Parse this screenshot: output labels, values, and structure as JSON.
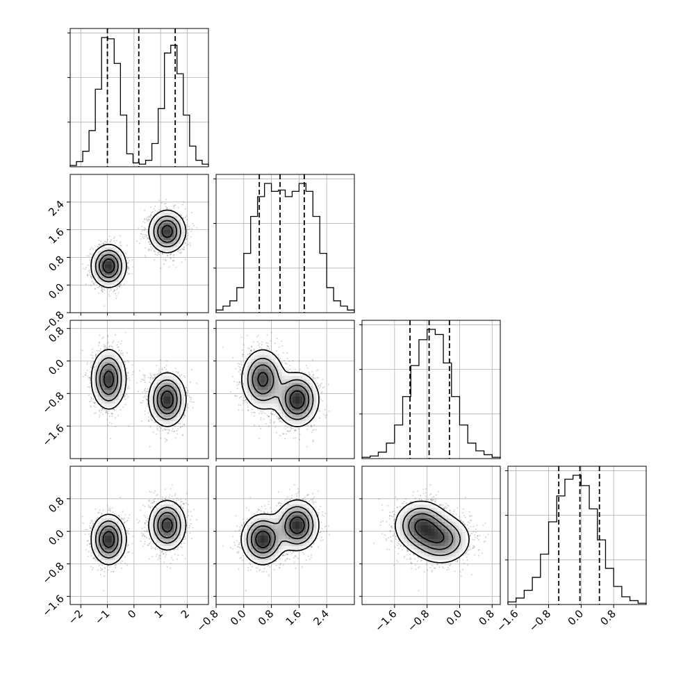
{
  "chart_data": {
    "type": "corner",
    "title": "",
    "n_params": 4,
    "param_labels": [
      "",
      "",
      "",
      ""
    ],
    "ranges": [
      [
        -2.4,
        2.8
      ],
      [
        -0.8,
        3.2
      ],
      [
        -2.4,
        1.0
      ],
      [
        -1.8,
        1.6
      ]
    ],
    "x_ticks": [
      [
        -2,
        -1,
        0,
        1,
        2
      ],
      [
        -0.8,
        0.0,
        0.8,
        1.6,
        2.4
      ],
      [
        -1.6,
        -0.8,
        0.0,
        0.8
      ],
      [
        -1.6,
        -0.8,
        0.0,
        0.8
      ]
    ],
    "x_tick_labels": [
      [
        "−2",
        "−1",
        "0",
        "1",
        "2"
      ],
      [
        "−0.8",
        "0.0",
        "0.8",
        "1.6",
        "2.4"
      ],
      [
        "−1.6",
        "−0.8",
        "0.0",
        "0.8"
      ],
      [
        "−1.6",
        "−0.8",
        "0.0",
        "0.8"
      ]
    ],
    "y_ticks": [
      [],
      [
        -0.8,
        0.0,
        0.8,
        1.6,
        2.4
      ],
      [
        -1.6,
        -0.8,
        0.0,
        0.8
      ],
      [
        -1.6,
        -0.8,
        0.0,
        0.8
      ]
    ],
    "y_tick_labels": [
      [],
      [
        "−0.8",
        "0.0",
        "0.8",
        "1.6",
        "2.4"
      ],
      [
        "−1.6",
        "−0.8",
        "0.0",
        "0.8"
      ],
      [
        "−1.6",
        "−0.8",
        "0.0",
        "0.8"
      ]
    ],
    "quantiles": [
      [
        -1.0,
        0.18,
        1.55
      ],
      [
        0.45,
        1.05,
        1.75
      ],
      [
        -1.22,
        -0.75,
        -0.25
      ],
      [
        -0.55,
        -0.03,
        0.45
      ]
    ],
    "histograms": [
      {
        "bins": [
          -2.4,
          2.8
        ],
        "counts": [
          1,
          4,
          12,
          28,
          60,
          100,
          99,
          80,
          40,
          10,
          3,
          2,
          5,
          18,
          45,
          88,
          94,
          72,
          40,
          16,
          5,
          2
        ]
      },
      {
        "bins": [
          -0.8,
          3.2
        ],
        "counts": [
          2,
          5,
          9,
          19,
          45,
          73,
          88,
          98,
          92,
          93,
          88,
          92,
          98,
          92,
          73,
          45,
          19,
          9,
          5,
          2
        ]
      },
      {
        "bins": [
          -2.4,
          1.0
        ],
        "counts": [
          1,
          2,
          5,
          12,
          26,
          48,
          72,
          92,
          100,
          96,
          74,
          48,
          26,
          12,
          6,
          3,
          1
        ]
      },
      {
        "bins": [
          -1.8,
          1.6
        ],
        "counts": [
          2,
          5,
          11,
          21,
          39,
          64,
          84,
          97,
          100,
          92,
          74,
          50,
          28,
          14,
          6,
          3,
          1
        ]
      }
    ],
    "components": [
      {
        "weight": 0.5,
        "mean": [
          -0.95,
          0.55,
          -0.45,
          -0.2
        ],
        "std": [
          0.32,
          0.3,
          0.36,
          0.3
        ]
      },
      {
        "weight": 0.5,
        "mean": [
          1.25,
          1.55,
          -0.95,
          0.15
        ],
        "std": [
          0.34,
          0.3,
          0.32,
          0.3
        ]
      }
    ],
    "points_per_component": 1400,
    "grid": true
  }
}
